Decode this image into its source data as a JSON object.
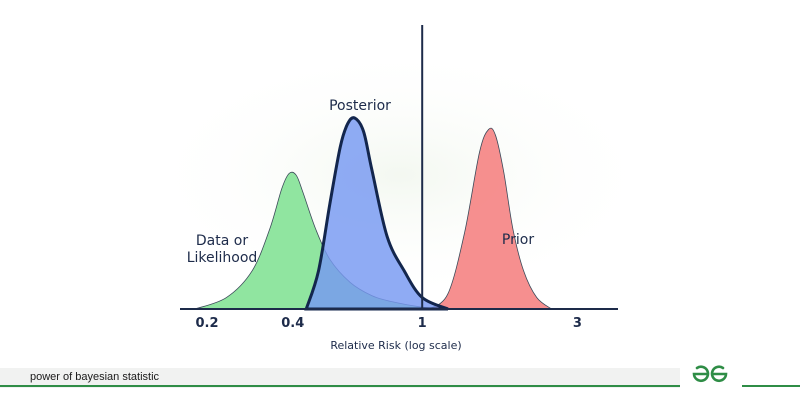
{
  "chart_data": {
    "type": "area",
    "xlabel": "Relative Risk (log scale)",
    "x_scale": "log",
    "x_ticks": [
      "0.2",
      "0.4",
      "1",
      "3"
    ],
    "x_tick_values": [
      0.2,
      0.4,
      1,
      3
    ],
    "xlim": [
      0.18,
      4
    ],
    "reference_line_x": 1,
    "series": [
      {
        "name": "Data or\nLikelihood",
        "label_lines": [
          "Data or",
          "Likelihood"
        ],
        "color": "#7de08f",
        "x": [
          0.2,
          0.25,
          0.3,
          0.34,
          0.37,
          0.39,
          0.41,
          0.43,
          0.47,
          0.52,
          0.6,
          0.7,
          0.8,
          1.0,
          1.2
        ],
        "y": [
          0.0,
          0.06,
          0.2,
          0.42,
          0.63,
          0.71,
          0.7,
          0.61,
          0.42,
          0.26,
          0.14,
          0.07,
          0.04,
          0.01,
          0.0
        ]
      },
      {
        "name": "Posterior",
        "label_lines": [
          "Posterior"
        ],
        "color": "#7699f2",
        "x": [
          0.44,
          0.48,
          0.52,
          0.56,
          0.59,
          0.62,
          0.66,
          0.7,
          0.78,
          0.88,
          1.0,
          1.2
        ],
        "y": [
          0.0,
          0.2,
          0.55,
          0.85,
          0.97,
          1.0,
          0.93,
          0.73,
          0.38,
          0.2,
          0.06,
          0.0
        ]
      },
      {
        "name": "Prior",
        "label_lines": [
          "Prior"
        ],
        "color": "#f47b7b",
        "x": [
          1.05,
          1.2,
          1.35,
          1.5,
          1.6,
          1.68,
          1.78,
          1.9,
          2.05,
          2.25,
          2.5
        ],
        "y": [
          0.0,
          0.08,
          0.4,
          0.82,
          0.94,
          0.91,
          0.72,
          0.42,
          0.2,
          0.06,
          0.0
        ]
      }
    ]
  },
  "footer": {
    "caption": "power of bayesian statistic",
    "logo_icon": "geeksforgeeks-logo-icon",
    "brand_color": "#2f8d46"
  }
}
